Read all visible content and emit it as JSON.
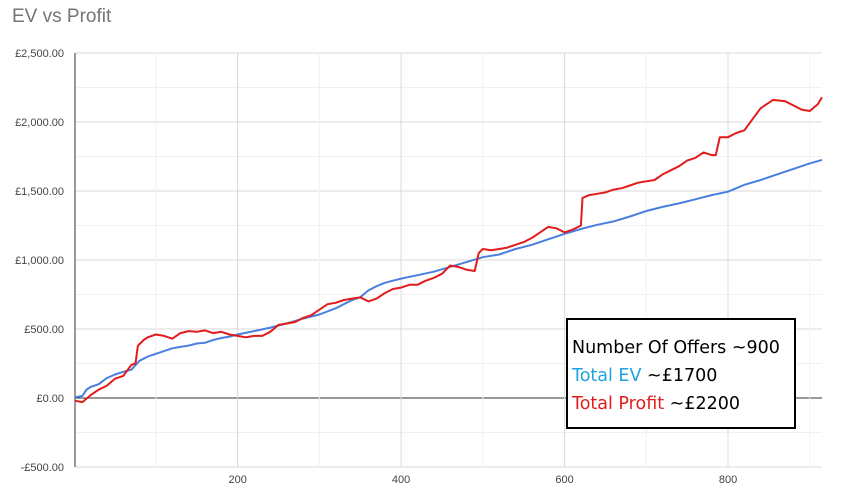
{
  "chart_data": {
    "type": "line",
    "title": "EV vs Profit",
    "xlabel": "",
    "ylabel": "",
    "xlim": [
      1,
      915
    ],
    "ylim": [
      -500,
      2500
    ],
    "x_ticks": [
      200,
      400,
      600,
      800
    ],
    "y_ticks": [
      -500,
      0,
      500,
      1000,
      1500,
      2000,
      2500
    ],
    "y_tick_labels": [
      "-£500.00",
      "£0.00",
      "£500.00",
      "£1,000.00",
      "£1,500.00",
      "£2,000.00",
      "£2,500.00"
    ],
    "grid": true,
    "legend": "none",
    "series": [
      {
        "color": "#4a7fe0",
        "x": [
          1,
          10,
          15,
          20,
          30,
          40,
          50,
          60,
          70,
          80,
          90,
          100,
          110,
          120,
          130,
          140,
          150,
          160,
          170,
          180,
          190,
          200,
          220,
          240,
          260,
          280,
          300,
          320,
          340,
          350,
          360,
          370,
          380,
          390,
          400,
          420,
          440,
          460,
          480,
          500,
          520,
          540,
          560,
          580,
          600,
          620,
          640,
          660,
          680,
          700,
          720,
          740,
          760,
          780,
          800,
          820,
          840,
          860,
          880,
          900,
          915
        ],
        "y": [
          5,
          15,
          60,
          80,
          100,
          145,
          170,
          190,
          205,
          270,
          300,
          320,
          340,
          360,
          370,
          380,
          395,
          400,
          420,
          435,
          445,
          460,
          485,
          510,
          540,
          575,
          605,
          650,
          710,
          730,
          780,
          810,
          835,
          850,
          865,
          890,
          915,
          950,
          985,
          1020,
          1040,
          1080,
          1110,
          1150,
          1190,
          1225,
          1255,
          1280,
          1315,
          1355,
          1385,
          1410,
          1440,
          1470,
          1495,
          1545,
          1580,
          1620,
          1660,
          1700,
          1725
        ]
      },
      {
        "color": "#e21b1b",
        "x": [
          1,
          10,
          20,
          30,
          40,
          50,
          60,
          70,
          75,
          78,
          85,
          90,
          100,
          110,
          120,
          130,
          140,
          150,
          160,
          170,
          180,
          190,
          200,
          210,
          220,
          230,
          240,
          250,
          260,
          270,
          280,
          290,
          300,
          310,
          320,
          330,
          340,
          350,
          360,
          370,
          380,
          390,
          400,
          410,
          420,
          430,
          440,
          450,
          460,
          470,
          480,
          490,
          495,
          500,
          510,
          520,
          530,
          540,
          550,
          560,
          570,
          580,
          590,
          600,
          610,
          620,
          622,
          630,
          640,
          650,
          660,
          670,
          680,
          690,
          700,
          710,
          720,
          730,
          740,
          745,
          750,
          760,
          770,
          780,
          785,
          790,
          800,
          810,
          820,
          830,
          840,
          850,
          855,
          870,
          880,
          890,
          900,
          910,
          915
        ],
        "y": [
          -20,
          -30,
          20,
          60,
          90,
          140,
          160,
          240,
          250,
          380,
          420,
          440,
          460,
          450,
          430,
          470,
          485,
          480,
          490,
          470,
          480,
          460,
          450,
          440,
          450,
          450,
          480,
          530,
          540,
          550,
          580,
          600,
          640,
          680,
          690,
          710,
          720,
          730,
          700,
          720,
          760,
          790,
          800,
          820,
          820,
          850,
          870,
          900,
          960,
          950,
          930,
          920,
          1050,
          1080,
          1070,
          1080,
          1090,
          1110,
          1130,
          1160,
          1200,
          1240,
          1230,
          1200,
          1220,
          1250,
          1450,
          1470,
          1480,
          1490,
          1510,
          1520,
          1540,
          1560,
          1570,
          1580,
          1620,
          1650,
          1680,
          1700,
          1720,
          1740,
          1780,
          1760,
          1760,
          1890,
          1890,
          1920,
          1940,
          2020,
          2100,
          2140,
          2160,
          2150,
          2120,
          2090,
          2080,
          2130,
          2180
        ]
      }
    ],
    "annotations": {
      "line1": "Number Of Offers ~900",
      "line2_label": "Total EV",
      "line2_value": "~£1700",
      "line3_label": "Total Profit",
      "line3_value": "~£2200",
      "line2_color": "#1fa3e0",
      "line3_color": "#e21b1b"
    }
  }
}
